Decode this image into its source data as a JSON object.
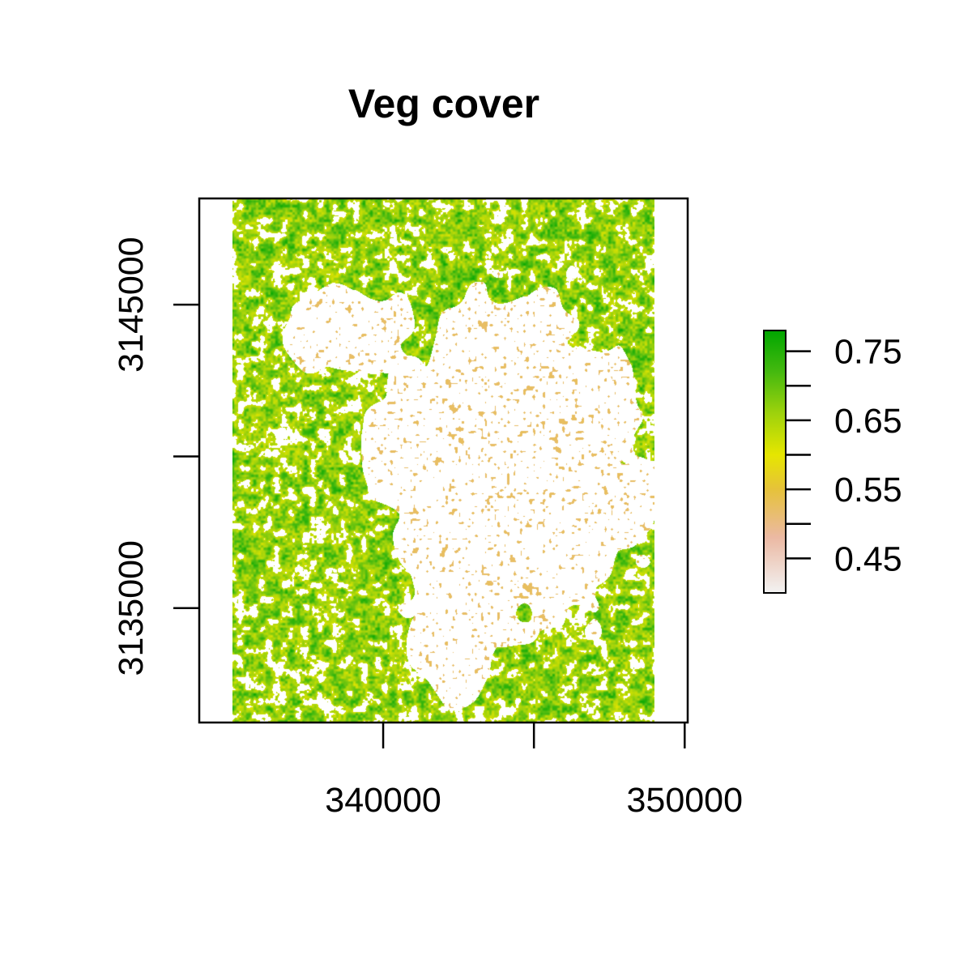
{
  "chart_data": {
    "type": "heatmap",
    "title": "Veg cover",
    "xlabel": "",
    "ylabel": "",
    "x_ticks": [
      {
        "value": 340000,
        "label": "340000"
      },
      {
        "value": 345000,
        "label": ""
      },
      {
        "value": 350000,
        "label": "350000"
      }
    ],
    "y_ticks": [
      {
        "value": 3135000,
        "label": "3135000"
      },
      {
        "value": 3140000,
        "label": ""
      },
      {
        "value": 3145000,
        "label": "3145000"
      }
    ],
    "xlim": [
      333900,
      350100
    ],
    "ylim": [
      3131230,
      3148500
    ],
    "raster_extent": {
      "x": [
        335000,
        349000
      ],
      "y": [
        3131230,
        3148500
      ]
    },
    "value_range": [
      0.4,
      0.78
    ],
    "legend": {
      "position": "right",
      "ticks": [
        {
          "value": 0.45,
          "label": "0.45"
        },
        {
          "value": 0.5,
          "label": ""
        },
        {
          "value": 0.55,
          "label": "0.55"
        },
        {
          "value": 0.6,
          "label": ""
        },
        {
          "value": 0.65,
          "label": "0.65"
        },
        {
          "value": 0.7,
          "label": ""
        },
        {
          "value": 0.75,
          "label": "0.75"
        }
      ]
    },
    "color_stops": [
      {
        "value": 0.4,
        "color": "#f2f2f2"
      },
      {
        "value": 0.48,
        "color": "#ebb9a3"
      },
      {
        "value": 0.55,
        "color": "#e6c23a"
      },
      {
        "value": 0.6,
        "color": "#e6e600"
      },
      {
        "value": 0.66,
        "color": "#9ed20c"
      },
      {
        "value": 0.72,
        "color": "#45b90f"
      },
      {
        "value": 0.78,
        "color": "#00a600"
      }
    ],
    "grid": false
  }
}
